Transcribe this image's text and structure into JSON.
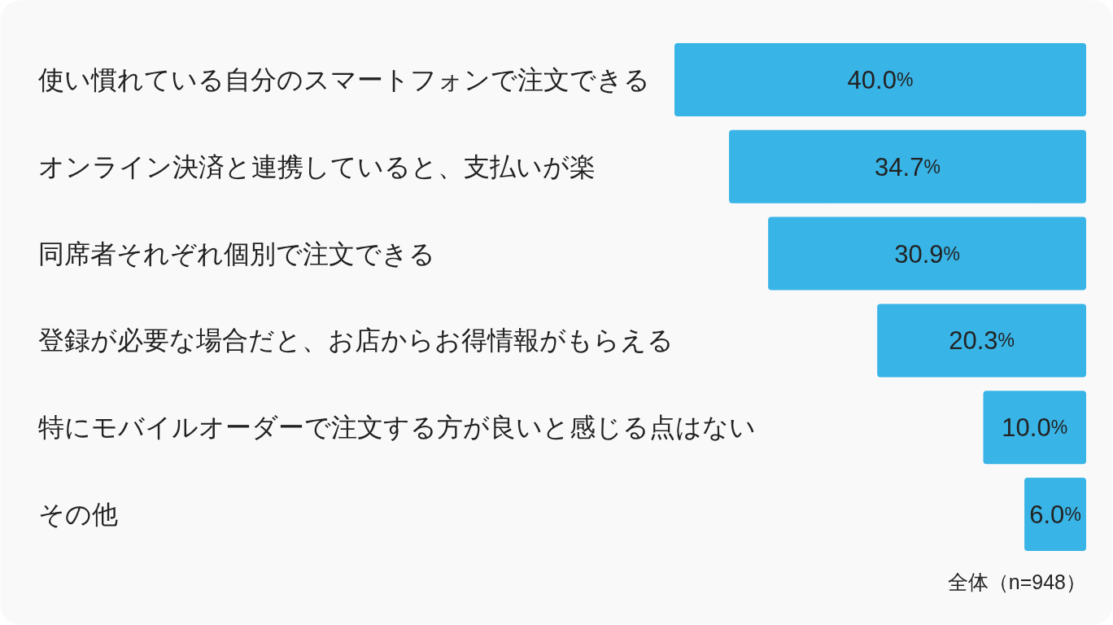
{
  "chart_data": {
    "type": "bar",
    "orientation": "horizontal",
    "categories": [
      "使い慣れている自分のスマートフォンで注文できる",
      "オンライン決済と連携していると、支払いが楽",
      "同席者それぞれ個別で注文できる",
      "登録が必要な場合だと、お店からお得情報がもらえる",
      "特にモバイルオーダーで注文する方が良いと感じる点はない",
      "その他"
    ],
    "values": [
      40.0,
      34.7,
      30.9,
      20.3,
      10.0,
      6.0
    ],
    "value_labels": [
      "40.0%",
      "34.7%",
      "30.9%",
      "20.3%",
      "10.0%",
      "6.0%"
    ],
    "color": "#38b4e6",
    "annotations": [
      "全体（n=948）"
    ]
  }
}
